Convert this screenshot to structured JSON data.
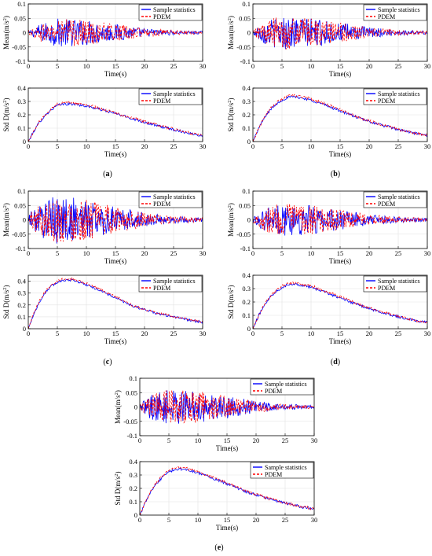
{
  "chart_data": [
    {
      "type": "line",
      "panel": "a",
      "caption": "(a)",
      "title": "",
      "xlabel": "Time(s)",
      "ylabel": "Mean(m/s^2)",
      "xlim": [
        0,
        30
      ],
      "ylim": [
        -0.1,
        0.1
      ],
      "xticks": [
        "0",
        "5",
        "10",
        "15",
        "20",
        "25",
        "30"
      ],
      "yticks": [
        "-0.1",
        "-0.05",
        "0",
        "0.05",
        "0.1"
      ],
      "grid": true,
      "legend": "top-right",
      "series": [
        {
          "name": "Sample statistics",
          "color": "#0000ff",
          "style": "solid",
          "envelope": {
            "x": [
              0,
              2,
              5,
              10,
              15,
              20,
              25,
              30
            ],
            "amplitude": [
              0.005,
              0.03,
              0.05,
              0.045,
              0.03,
              0.015,
              0.008,
              0.005
            ]
          }
        },
        {
          "name": "PDEM",
          "color": "#ff0000",
          "style": "dashed",
          "envelope": {
            "x": [
              0,
              2,
              5,
              10,
              15,
              20,
              25,
              30
            ],
            "amplitude": [
              0.005,
              0.03,
              0.05,
              0.045,
              0.03,
              0.015,
              0.008,
              0.005
            ]
          }
        }
      ]
    },
    {
      "type": "line",
      "panel": "a",
      "title": "",
      "xlabel": "Time(s)",
      "ylabel": "Std D(m/s^2)",
      "xlim": [
        0,
        30
      ],
      "ylim": [
        0,
        0.4
      ],
      "xticks": [
        "0",
        "5",
        "10",
        "15",
        "20",
        "25",
        "30"
      ],
      "yticks": [
        "0",
        "0.1",
        "0.2",
        "0.3",
        "0.4"
      ],
      "grid": true,
      "legend": "top-right",
      "series": [
        {
          "name": "Sample statistics",
          "color": "#0000ff",
          "style": "solid",
          "x": [
            0,
            1,
            2,
            3,
            4,
            5,
            6,
            7,
            8,
            10,
            12,
            15,
            18,
            20,
            22,
            25,
            28,
            30
          ],
          "y": [
            0.0,
            0.08,
            0.15,
            0.2,
            0.24,
            0.27,
            0.28,
            0.28,
            0.28,
            0.265,
            0.245,
            0.21,
            0.17,
            0.145,
            0.12,
            0.09,
            0.06,
            0.045
          ]
        },
        {
          "name": "PDEM",
          "color": "#ff0000",
          "style": "dashed",
          "x": [
            0,
            1,
            2,
            3,
            4,
            5,
            6,
            7,
            8,
            10,
            12,
            15,
            18,
            20,
            22,
            25,
            28,
            30
          ],
          "y": [
            0.0,
            0.082,
            0.155,
            0.205,
            0.245,
            0.28,
            0.29,
            0.29,
            0.29,
            0.275,
            0.25,
            0.215,
            0.175,
            0.15,
            0.125,
            0.093,
            0.063,
            0.047
          ]
        }
      ]
    },
    {
      "type": "line",
      "panel": "b",
      "caption": "(b)",
      "title": "",
      "xlabel": "Time(s)",
      "ylabel": "Mean(m/s^2)",
      "xlim": [
        0,
        30
      ],
      "ylim": [
        -0.1,
        0.1
      ],
      "xticks": [
        "0",
        "5",
        "10",
        "15",
        "20",
        "25",
        "30"
      ],
      "yticks": [
        "-0.1",
        "-0.05",
        "0",
        "0.05",
        "0.1"
      ],
      "grid": true,
      "legend": "top-right",
      "series": [
        {
          "name": "Sample statistics",
          "color": "#0000ff",
          "style": "solid",
          "envelope": {
            "x": [
              0,
              2,
              5,
              10,
              15,
              20,
              25,
              30
            ],
            "amplitude": [
              0.01,
              0.04,
              0.06,
              0.05,
              0.035,
              0.018,
              0.01,
              0.006
            ]
          }
        },
        {
          "name": "PDEM",
          "color": "#ff0000",
          "style": "dashed",
          "envelope": {
            "x": [
              0,
              2,
              5,
              10,
              15,
              20,
              25,
              30
            ],
            "amplitude": [
              0.01,
              0.04,
              0.06,
              0.05,
              0.035,
              0.018,
              0.01,
              0.006
            ]
          }
        }
      ]
    },
    {
      "type": "line",
      "panel": "b",
      "title": "",
      "xlabel": "Time(s)",
      "ylabel": "Std D(m/s^2)",
      "xlim": [
        0,
        30
      ],
      "ylim": [
        0,
        0.4
      ],
      "xticks": [
        "0",
        "5",
        "10",
        "15",
        "20",
        "25",
        "30"
      ],
      "yticks": [
        "0",
        "0.1",
        "0.2",
        "0.3",
        "0.4"
      ],
      "grid": true,
      "legend": "top-right",
      "series": [
        {
          "name": "Sample statistics",
          "color": "#0000ff",
          "style": "solid",
          "x": [
            0,
            1,
            2,
            3,
            4,
            5,
            6,
            7,
            8,
            10,
            12,
            15,
            18,
            20,
            22,
            25,
            28,
            30
          ],
          "y": [
            0.0,
            0.1,
            0.18,
            0.24,
            0.28,
            0.31,
            0.33,
            0.335,
            0.33,
            0.31,
            0.28,
            0.23,
            0.18,
            0.15,
            0.125,
            0.09,
            0.06,
            0.045
          ]
        },
        {
          "name": "PDEM",
          "color": "#ff0000",
          "style": "dashed",
          "x": [
            0,
            1,
            2,
            3,
            4,
            5,
            6,
            7,
            8,
            10,
            12,
            15,
            18,
            20,
            22,
            25,
            28,
            30
          ],
          "y": [
            0.0,
            0.1,
            0.185,
            0.245,
            0.29,
            0.32,
            0.34,
            0.345,
            0.34,
            0.32,
            0.29,
            0.24,
            0.185,
            0.155,
            0.128,
            0.092,
            0.062,
            0.047
          ]
        }
      ]
    },
    {
      "type": "line",
      "panel": "c",
      "caption": "(c)",
      "title": "",
      "xlabel": "Time(s)",
      "ylabel": "Mean(m/s^2)",
      "xlim": [
        0,
        30
      ],
      "ylim": [
        -0.1,
        0.1
      ],
      "xticks": [
        "0",
        "5",
        "10",
        "15",
        "20",
        "25",
        "30"
      ],
      "yticks": [
        "-0.1",
        "-0.05",
        "0",
        "0.05",
        "0.1"
      ],
      "grid": true,
      "legend": "top-right",
      "series": [
        {
          "name": "Sample statistics",
          "color": "#0000ff",
          "style": "solid",
          "envelope": {
            "x": [
              0,
              2,
              5,
              10,
              15,
              20,
              25,
              30
            ],
            "amplitude": [
              0.02,
              0.06,
              0.085,
              0.07,
              0.045,
              0.025,
              0.012,
              0.008
            ]
          }
        },
        {
          "name": "PDEM",
          "color": "#ff0000",
          "style": "dashed",
          "envelope": {
            "x": [
              0,
              2,
              5,
              10,
              15,
              20,
              25,
              30
            ],
            "amplitude": [
              0.02,
              0.06,
              0.085,
              0.07,
              0.045,
              0.025,
              0.012,
              0.008
            ]
          }
        }
      ]
    },
    {
      "type": "line",
      "panel": "c",
      "title": "",
      "xlabel": "Time(s)",
      "ylabel": "Std D(m/s^2)",
      "xlim": [
        0,
        30
      ],
      "ylim": [
        0,
        0.45
      ],
      "xticks": [
        "0",
        "5",
        "10",
        "15",
        "20",
        "25",
        "30"
      ],
      "yticks": [
        "0",
        "0.1",
        "0.2",
        "0.3",
        "0.4"
      ],
      "grid": true,
      "legend": "top-right",
      "series": [
        {
          "name": "Sample statistics",
          "color": "#0000ff",
          "style": "solid",
          "x": [
            0,
            1,
            2,
            3,
            4,
            5,
            6,
            7,
            8,
            10,
            12,
            15,
            18,
            20,
            22,
            25,
            28,
            30
          ],
          "y": [
            0.0,
            0.13,
            0.23,
            0.31,
            0.36,
            0.39,
            0.41,
            0.41,
            0.405,
            0.37,
            0.33,
            0.26,
            0.19,
            0.16,
            0.13,
            0.1,
            0.07,
            0.055
          ]
        },
        {
          "name": "PDEM",
          "color": "#ff0000",
          "style": "dashed",
          "x": [
            0,
            1,
            2,
            3,
            4,
            5,
            6,
            7,
            8,
            10,
            12,
            15,
            18,
            20,
            22,
            25,
            28,
            30
          ],
          "y": [
            0.0,
            0.135,
            0.24,
            0.32,
            0.37,
            0.4,
            0.42,
            0.42,
            0.415,
            0.38,
            0.34,
            0.27,
            0.195,
            0.165,
            0.135,
            0.103,
            0.072,
            0.057
          ]
        }
      ]
    },
    {
      "type": "line",
      "panel": "d",
      "caption": "(d)",
      "title": "",
      "xlabel": "Time(s)",
      "ylabel": "Mean(m/s^2)",
      "xlim": [
        0,
        30
      ],
      "ylim": [
        -0.1,
        0.1
      ],
      "xticks": [
        "0",
        "5",
        "10",
        "15",
        "20",
        "25",
        "30"
      ],
      "yticks": [
        "-0.1",
        "-0.05",
        "0",
        "0.05",
        "0.1"
      ],
      "grid": true,
      "legend": "top-right",
      "series": [
        {
          "name": "Sample statistics",
          "color": "#0000ff",
          "style": "solid",
          "envelope": {
            "x": [
              0,
              2,
              5,
              10,
              15,
              20,
              25,
              30
            ],
            "amplitude": [
              0.01,
              0.04,
              0.06,
              0.05,
              0.035,
              0.018,
              0.01,
              0.006
            ]
          }
        },
        {
          "name": "PDEM",
          "color": "#ff0000",
          "style": "dashed",
          "envelope": {
            "x": [
              0,
              2,
              5,
              10,
              15,
              20,
              25,
              30
            ],
            "amplitude": [
              0.01,
              0.04,
              0.06,
              0.05,
              0.035,
              0.018,
              0.01,
              0.006
            ]
          }
        }
      ]
    },
    {
      "type": "line",
      "panel": "d",
      "title": "",
      "xlabel": "Time(s)",
      "ylabel": "Std D(m/s^2)",
      "xlim": [
        0,
        30
      ],
      "ylim": [
        0,
        0.4
      ],
      "xticks": [
        "0",
        "5",
        "10",
        "15",
        "20",
        "25",
        "30"
      ],
      "yticks": [
        "0",
        "0.1",
        "0.2",
        "0.3",
        "0.4"
      ],
      "grid": true,
      "legend": "top-right",
      "series": [
        {
          "name": "Sample statistics",
          "color": "#0000ff",
          "style": "solid",
          "x": [
            0,
            1,
            2,
            3,
            4,
            5,
            6,
            7,
            8,
            10,
            12,
            15,
            18,
            20,
            22,
            25,
            28,
            30
          ],
          "y": [
            0.0,
            0.1,
            0.18,
            0.24,
            0.28,
            0.31,
            0.33,
            0.335,
            0.33,
            0.31,
            0.28,
            0.23,
            0.18,
            0.15,
            0.125,
            0.09,
            0.06,
            0.045
          ]
        },
        {
          "name": "PDEM",
          "color": "#ff0000",
          "style": "dashed",
          "x": [
            0,
            1,
            2,
            3,
            4,
            5,
            6,
            7,
            8,
            10,
            12,
            15,
            18,
            20,
            22,
            25,
            28,
            30
          ],
          "y": [
            0.0,
            0.1,
            0.185,
            0.245,
            0.29,
            0.32,
            0.34,
            0.345,
            0.34,
            0.32,
            0.29,
            0.24,
            0.185,
            0.155,
            0.128,
            0.092,
            0.062,
            0.047
          ]
        }
      ]
    },
    {
      "type": "line",
      "panel": "e",
      "caption": "(e)",
      "title": "",
      "xlabel": "Time(s)",
      "ylabel": "Mean(m/s^2)",
      "xlim": [
        0,
        30
      ],
      "ylim": [
        -0.1,
        0.1
      ],
      "xticks": [
        "0",
        "5",
        "10",
        "15",
        "20",
        "25",
        "30"
      ],
      "yticks": [
        "-0.1",
        "-0.05",
        "0",
        "0.05",
        "0.1"
      ],
      "grid": true,
      "legend": "top-right",
      "series": [
        {
          "name": "Sample statistics",
          "color": "#0000ff",
          "style": "solid",
          "envelope": {
            "x": [
              0,
              2,
              5,
              10,
              15,
              20,
              25,
              30
            ],
            "amplitude": [
              0.01,
              0.045,
              0.06,
              0.055,
              0.04,
              0.02,
              0.01,
              0.006
            ]
          }
        },
        {
          "name": "PDEM",
          "color": "#ff0000",
          "style": "dashed",
          "envelope": {
            "x": [
              0,
              2,
              5,
              10,
              15,
              20,
              25,
              30
            ],
            "amplitude": [
              0.01,
              0.045,
              0.06,
              0.055,
              0.04,
              0.02,
              0.01,
              0.006
            ]
          }
        }
      ]
    },
    {
      "type": "line",
      "panel": "e",
      "title": "",
      "xlabel": "Time(s)",
      "ylabel": "Std D(m/s^2)",
      "xlim": [
        0,
        30
      ],
      "ylim": [
        0,
        0.4
      ],
      "xticks": [
        "0",
        "5",
        "10",
        "15",
        "20",
        "25",
        "30"
      ],
      "yticks": [
        "0",
        "0.1",
        "0.2",
        "0.3",
        "0.4"
      ],
      "grid": true,
      "legend": "top-right",
      "series": [
        {
          "name": "Sample statistics",
          "color": "#0000ff",
          "style": "solid",
          "x": [
            0,
            1,
            2,
            3,
            4,
            5,
            6,
            7,
            8,
            10,
            12,
            15,
            18,
            20,
            22,
            25,
            28,
            30
          ],
          "y": [
            0.0,
            0.1,
            0.18,
            0.24,
            0.29,
            0.32,
            0.34,
            0.345,
            0.34,
            0.315,
            0.285,
            0.235,
            0.18,
            0.15,
            0.125,
            0.09,
            0.06,
            0.045
          ]
        },
        {
          "name": "PDEM",
          "color": "#ff0000",
          "style": "dashed",
          "x": [
            0,
            1,
            2,
            3,
            4,
            5,
            6,
            7,
            8,
            10,
            12,
            15,
            18,
            20,
            22,
            25,
            28,
            30
          ],
          "y": [
            0.0,
            0.1,
            0.185,
            0.25,
            0.3,
            0.33,
            0.35,
            0.355,
            0.35,
            0.325,
            0.29,
            0.24,
            0.185,
            0.155,
            0.128,
            0.092,
            0.062,
            0.047
          ]
        }
      ]
    }
  ]
}
